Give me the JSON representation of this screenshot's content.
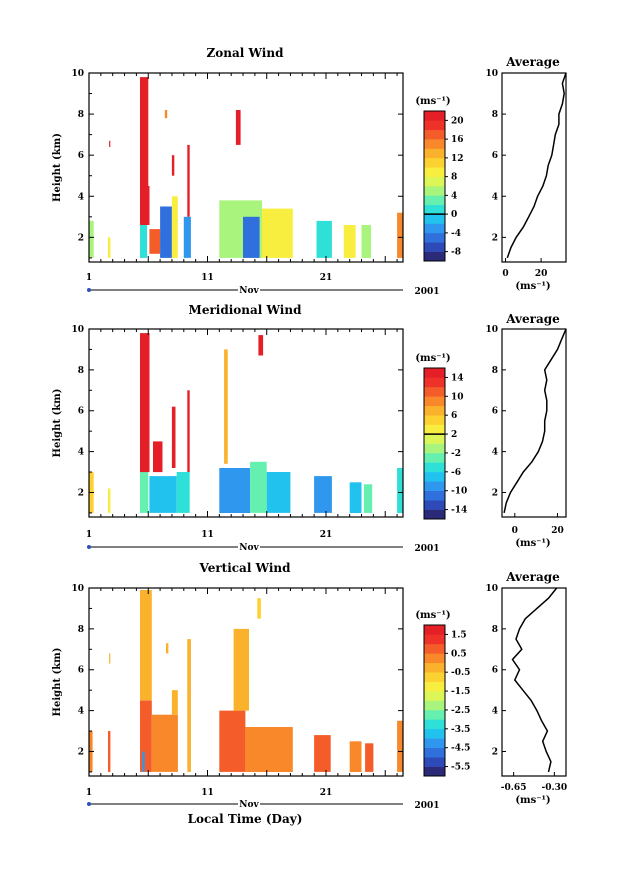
{
  "figure": {
    "x_axis_title": "Local Time (Day)",
    "month_label": "Nov",
    "year_label": "2001",
    "x_ticks": [
      1,
      11,
      21
    ],
    "x_range": [
      1,
      27.5
    ],
    "y_label": "Height (km)",
    "y_ticks": [
      2,
      4,
      6,
      8,
      10
    ],
    "y_range": [
      0.8,
      10
    ]
  },
  "chart_data": [
    {
      "type": "heatmap",
      "title": "Zonal Wind",
      "unit": "(ms⁻¹)",
      "colorbar": {
        "ticks": [
          20,
          16,
          12,
          8,
          4,
          0,
          -4,
          -8
        ],
        "min": -10,
        "max": 22,
        "zero_line": 0
      },
      "bands": [
        {
          "x": [
            1.0,
            1.4
          ],
          "y": [
            1.0,
            2.8
          ],
          "v": 4
        },
        {
          "x": [
            2.6,
            2.8
          ],
          "y": [
            1.0,
            2.0
          ],
          "v": 8
        },
        {
          "x": [
            2.7,
            2.8
          ],
          "y": [
            6.4,
            6.7
          ],
          "v": 22
        },
        {
          "x": [
            5.3,
            5.9
          ],
          "y": [
            1.0,
            2.6
          ],
          "v": 0
        },
        {
          "x": [
            5.3,
            6.1
          ],
          "y": [
            2.6,
            4.5
          ],
          "v": 20
        },
        {
          "x": [
            5.3,
            6.0
          ],
          "y": [
            4.5,
            9.8
          ],
          "v": 22
        },
        {
          "x": [
            6.1,
            7.0
          ],
          "y": [
            1.2,
            2.4
          ],
          "v": 16
        },
        {
          "x": [
            7.0,
            8.0
          ],
          "y": [
            1.0,
            3.5
          ],
          "v": -6
        },
        {
          "x": [
            8.0,
            8.5
          ],
          "y": [
            1.0,
            4.0
          ],
          "v": 8
        },
        {
          "x": [
            7.4,
            7.6
          ],
          "y": [
            7.8,
            8.2
          ],
          "v": 14
        },
        {
          "x": [
            8.0,
            8.2
          ],
          "y": [
            5.0,
            6.0
          ],
          "v": 20
        },
        {
          "x": [
            9.0,
            9.6
          ],
          "y": [
            1.0,
            3.0
          ],
          "v": -4
        },
        {
          "x": [
            9.3,
            9.5
          ],
          "y": [
            3.0,
            6.5
          ],
          "v": 22
        },
        {
          "x": [
            12.0,
            15.6
          ],
          "y": [
            1.0,
            3.8
          ],
          "v": 4
        },
        {
          "x": [
            13.4,
            13.8
          ],
          "y": [
            6.5,
            8.2
          ],
          "v": 22
        },
        {
          "x": [
            14.0,
            15.4
          ],
          "y": [
            1.0,
            3.0
          ],
          "v": -6
        },
        {
          "x": [
            15.6,
            18.2
          ],
          "y": [
            1.0,
            3.4
          ],
          "v": 8
        },
        {
          "x": [
            20.2,
            21.5
          ],
          "y": [
            1.0,
            2.8
          ],
          "v": 0
        },
        {
          "x": [
            22.5,
            23.5
          ],
          "y": [
            1.0,
            2.6
          ],
          "v": 8
        },
        {
          "x": [
            24.0,
            24.8
          ],
          "y": [
            1.0,
            2.6
          ],
          "v": 4
        },
        {
          "x": [
            27.0,
            27.5
          ],
          "y": [
            1.0,
            3.2
          ],
          "v": 14
        }
      ],
      "average_profile": {
        "xlabel": "(ms⁻¹)",
        "x_ticks": [
          0,
          20
        ],
        "x_range": [
          -2,
          34
        ],
        "height": [
          1.0,
          1.5,
          2.0,
          2.5,
          3.0,
          3.5,
          4.0,
          4.5,
          5.0,
          5.5,
          6.0,
          6.5,
          7.0,
          7.5,
          8.0,
          8.5,
          9.0,
          9.5,
          10.0
        ],
        "value": [
          1,
          3,
          6,
          10,
          13,
          16,
          18,
          21,
          23,
          24,
          26,
          27,
          28,
          30,
          30,
          32,
          33,
          32,
          34
        ]
      }
    },
    {
      "type": "heatmap",
      "title": "Meridional Wind",
      "unit": "(ms⁻¹)",
      "colorbar": {
        "ticks": [
          14,
          10,
          6,
          2,
          -2,
          -6,
          -10,
          -14
        ],
        "min": -16,
        "max": 16,
        "zero_line": 2
      },
      "bands": [
        {
          "x": [
            1.0,
            1.4
          ],
          "y": [
            1.0,
            3.0
          ],
          "v": 4
        },
        {
          "x": [
            2.6,
            2.8
          ],
          "y": [
            1.0,
            2.2
          ],
          "v": 2
        },
        {
          "x": [
            5.3,
            6.0
          ],
          "y": [
            1.0,
            3.0
          ],
          "v": -4
        },
        {
          "x": [
            5.3,
            6.1
          ],
          "y": [
            3.0,
            9.8
          ],
          "v": 16
        },
        {
          "x": [
            6.1,
            8.4
          ],
          "y": [
            1.0,
            2.8
          ],
          "v": -8
        },
        {
          "x": [
            6.4,
            7.2
          ],
          "y": [
            3.0,
            4.5
          ],
          "v": 16
        },
        {
          "x": [
            8.0,
            8.3
          ],
          "y": [
            3.2,
            6.2
          ],
          "v": 16
        },
        {
          "x": [
            8.4,
            9.5
          ],
          "y": [
            1.0,
            3.0
          ],
          "v": -6
        },
        {
          "x": [
            9.3,
            9.5
          ],
          "y": [
            3.0,
            7.0
          ],
          "v": 16
        },
        {
          "x": [
            12.0,
            14.6
          ],
          "y": [
            1.0,
            3.2
          ],
          "v": -10
        },
        {
          "x": [
            12.4,
            12.7
          ],
          "y": [
            3.4,
            9.0
          ],
          "v": 6
        },
        {
          "x": [
            14.6,
            16.0
          ],
          "y": [
            1.0,
            3.5
          ],
          "v": -4
        },
        {
          "x": [
            15.3,
            15.7
          ],
          "y": [
            8.7,
            9.7
          ],
          "v": 16
        },
        {
          "x": [
            16.0,
            18.0
          ],
          "y": [
            1.0,
            3.0
          ],
          "v": -8
        },
        {
          "x": [
            20.0,
            21.5
          ],
          "y": [
            1.0,
            2.8
          ],
          "v": -10
        },
        {
          "x": [
            23.0,
            24.0
          ],
          "y": [
            1.0,
            2.5
          ],
          "v": -8
        },
        {
          "x": [
            24.2,
            24.9
          ],
          "y": [
            1.0,
            2.4
          ],
          "v": -4
        },
        {
          "x": [
            27.0,
            27.5
          ],
          "y": [
            1.0,
            3.2
          ],
          "v": -6
        }
      ],
      "average_profile": {
        "xlabel": "(ms⁻¹)",
        "x_ticks": [
          0,
          20
        ],
        "x_range": [
          -6,
          24
        ],
        "height": [
          1.0,
          1.5,
          2.0,
          2.5,
          3.0,
          3.5,
          4.0,
          4.5,
          5.0,
          5.5,
          6.0,
          6.5,
          7.0,
          7.5,
          8.0,
          8.5,
          9.0,
          9.5,
          10.0
        ],
        "value": [
          -5,
          -4,
          -2,
          1,
          4,
          8,
          11,
          13,
          14,
          14,
          15,
          15,
          14,
          15,
          14,
          17,
          20,
          22,
          24
        ]
      }
    },
    {
      "type": "heatmap",
      "title": "Vertical Wind",
      "unit": "(ms⁻¹)",
      "colorbar": {
        "ticks": [
          1.5,
          0.5,
          -0.5,
          -1.5,
          -2.5,
          -3.5,
          -4.5,
          -5.5
        ],
        "min": -6,
        "max": 2,
        "zero_line": null
      },
      "bands": [
        {
          "x": [
            1.0,
            1.3
          ],
          "y": [
            1.0,
            3.0
          ],
          "v": 0
        },
        {
          "x": [
            2.6,
            2.8
          ],
          "y": [
            1.0,
            3.0
          ],
          "v": 0.5
        },
        {
          "x": [
            2.7,
            2.8
          ],
          "y": [
            6.3,
            6.8
          ],
          "v": -0.5
        },
        {
          "x": [
            5.3,
            6.3
          ],
          "y": [
            1.0,
            4.5
          ],
          "v": 0.5
        },
        {
          "x": [
            5.3,
            6.3
          ],
          "y": [
            4.5,
            9.9
          ],
          "v": -0.5
        },
        {
          "x": [
            5.5,
            5.7
          ],
          "y": [
            1.0,
            2.0
          ],
          "v": -4.5
        },
        {
          "x": [
            6.3,
            8.5
          ],
          "y": [
            1.0,
            3.8
          ],
          "v": 0
        },
        {
          "x": [
            7.5,
            7.7
          ],
          "y": [
            6.8,
            7.3
          ],
          "v": -0.5
        },
        {
          "x": [
            8.0,
            8.5
          ],
          "y": [
            3.8,
            5.0
          ],
          "v": -0.5
        },
        {
          "x": [
            9.3,
            9.6
          ],
          "y": [
            1.0,
            7.5
          ],
          "v": -0.5
        },
        {
          "x": [
            12.0,
            14.2
          ],
          "y": [
            1.0,
            4.0
          ],
          "v": 0.5
        },
        {
          "x": [
            13.2,
            14.5
          ],
          "y": [
            4.0,
            8.0
          ],
          "v": -0.5
        },
        {
          "x": [
            14.2,
            18.2
          ],
          "y": [
            1.0,
            3.2
          ],
          "v": 0
        },
        {
          "x": [
            15.2,
            15.5
          ],
          "y": [
            8.5,
            9.5
          ],
          "v": -1
        },
        {
          "x": [
            20.0,
            21.4
          ],
          "y": [
            1.0,
            2.8
          ],
          "v": 0.5
        },
        {
          "x": [
            23.0,
            24.0
          ],
          "y": [
            1.0,
            2.5
          ],
          "v": 0
        },
        {
          "x": [
            24.3,
            25.0
          ],
          "y": [
            1.0,
            2.4
          ],
          "v": 0.5
        },
        {
          "x": [
            27.0,
            27.5
          ],
          "y": [
            1.0,
            3.5
          ],
          "v": 0
        }
      ],
      "average_profile": {
        "xlabel": "(ms⁻¹)",
        "x_ticks": [
          -0.65,
          -0.3
        ],
        "x_tick_labels": [
          "-0.65",
          "-0.30"
        ],
        "x_range": [
          -0.75,
          -0.2
        ],
        "height": [
          1.0,
          1.5,
          2.0,
          2.5,
          3.0,
          3.5,
          4.0,
          4.5,
          5.0,
          5.5,
          6.0,
          6.5,
          7.0,
          7.5,
          8.0,
          8.5,
          9.0,
          9.5,
          10.0
        ],
        "value": [
          -0.35,
          -0.33,
          -0.37,
          -0.4,
          -0.36,
          -0.41,
          -0.45,
          -0.5,
          -0.57,
          -0.64,
          -0.6,
          -0.66,
          -0.58,
          -0.63,
          -0.6,
          -0.55,
          -0.45,
          -0.35,
          -0.28
        ]
      }
    }
  ]
}
